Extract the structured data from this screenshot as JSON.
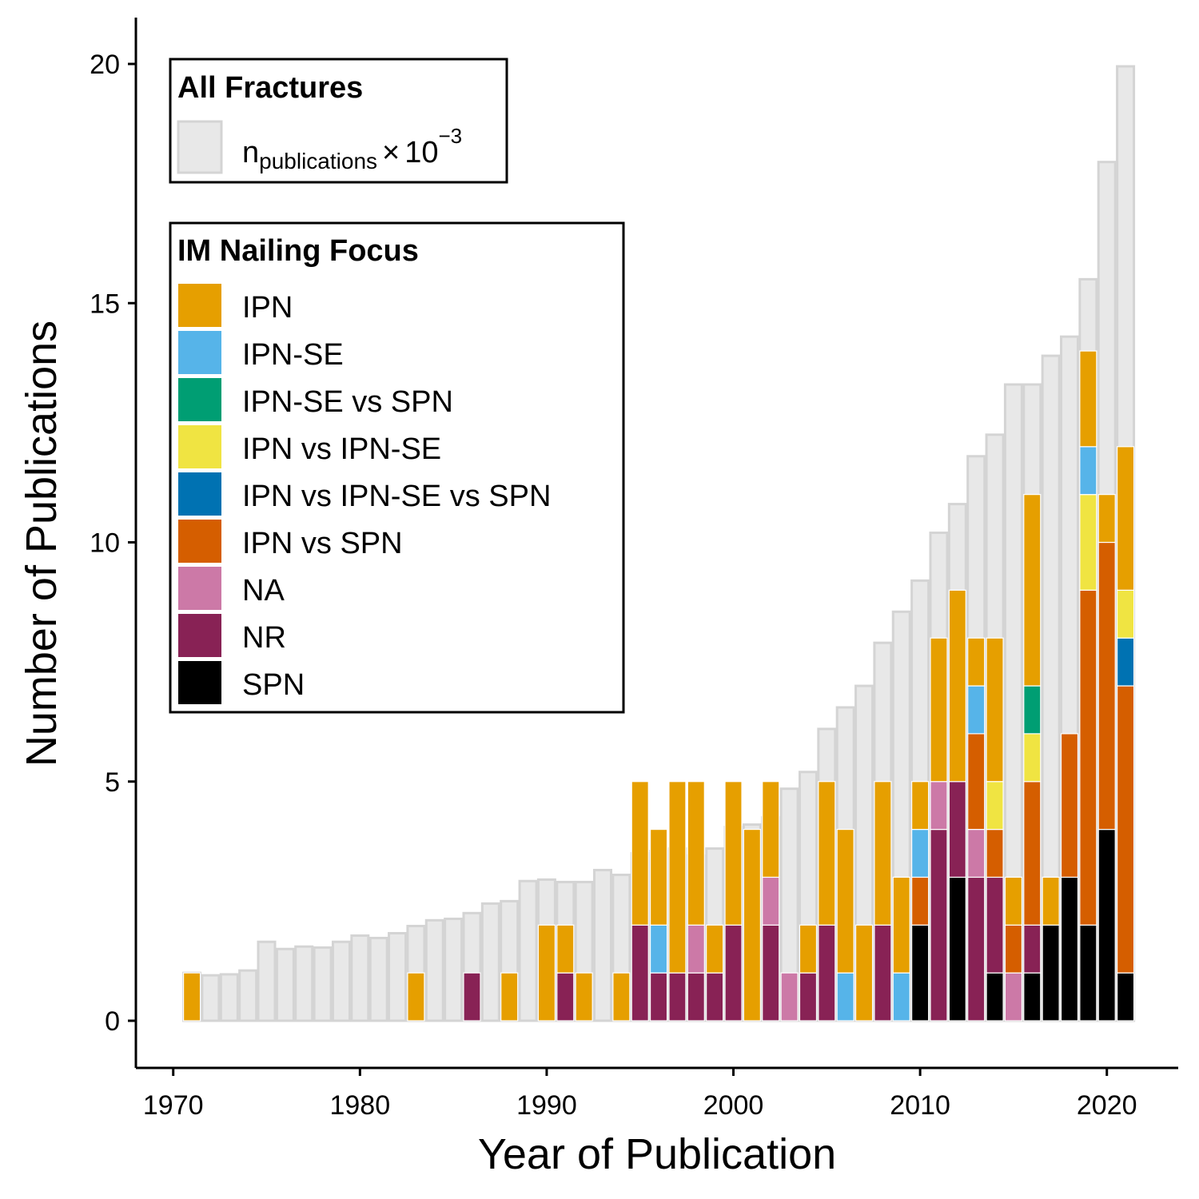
{
  "chart_data": {
    "type": "bar",
    "xlabel": "Year of Publication",
    "ylabel": "Number of Publications",
    "xlim": [
      1968,
      2024
    ],
    "ylim": [
      -1,
      21
    ],
    "x_ticks": [
      1970,
      1980,
      1990,
      2000,
      2010,
      2020
    ],
    "y_ticks": [
      0,
      5,
      10,
      15,
      20
    ],
    "grid": false,
    "legends": [
      {
        "title": "All Fractures",
        "placement": "top-left",
        "entries": [
          {
            "series": "all_fractures",
            "label_main": "n",
            "label_sub": "publications",
            "label_times": "×",
            "label_base": "10",
            "label_exp": "−3"
          }
        ]
      },
      {
        "title": "IM Nailing Focus",
        "placement": "left",
        "entries": [
          "IPN",
          "IPN-SE",
          "IPN-SE vs SPN",
          "IPN vs IPN-SE",
          "IPN vs IPN-SE vs SPN",
          "IPN vs SPN",
          "NA",
          "NR",
          "SPN"
        ]
      }
    ],
    "background_series": {
      "name": "All Fractures",
      "scale_note": "n_publications × 10^-3",
      "color": "#e8e8e8",
      "border_color": "#d4d4d4",
      "x": [
        1971,
        1972,
        1973,
        1974,
        1975,
        1976,
        1977,
        1978,
        1979,
        1980,
        1981,
        1982,
        1983,
        1984,
        1985,
        1986,
        1987,
        1988,
        1989,
        1990,
        1991,
        1992,
        1993,
        1994,
        1995,
        1996,
        1997,
        1998,
        1999,
        2000,
        2001,
        2002,
        2003,
        2004,
        2005,
        2006,
        2007,
        2008,
        2009,
        2010,
        2011,
        2012,
        2013,
        2014,
        2015,
        2016,
        2017,
        2018,
        2019,
        2020,
        2021
      ],
      "values": [
        1.0,
        0.95,
        0.97,
        1.05,
        1.65,
        1.5,
        1.55,
        1.53,
        1.65,
        1.78,
        1.73,
        1.83,
        1.98,
        2.1,
        2.13,
        2.25,
        2.45,
        2.5,
        2.92,
        2.95,
        2.9,
        2.9,
        3.15,
        3.05,
        3.5,
        3.55,
        3.6,
        3.45,
        3.6,
        4.05,
        4.1,
        4.25,
        4.85,
        5.2,
        6.1,
        6.55,
        7.0,
        7.9,
        8.55,
        9.2,
        10.2,
        10.8,
        11.8,
        12.25,
        13.3,
        13.3,
        13.9,
        14.3,
        15.5,
        17.95,
        19.95
      ]
    },
    "stack_order": [
      "SPN",
      "NR",
      "NA",
      "IPN vs SPN",
      "IPN vs IPN-SE vs SPN",
      "IPN vs IPN-SE",
      "IPN-SE vs SPN",
      "IPN-SE",
      "IPN"
    ],
    "series": [
      {
        "name": "IPN",
        "color": "#E69F00",
        "points": [
          [
            1971,
            1
          ],
          [
            1983,
            1
          ],
          [
            1988,
            1
          ],
          [
            1990,
            2
          ],
          [
            1991,
            1
          ],
          [
            1992,
            1
          ],
          [
            1994,
            1
          ],
          [
            1995,
            3
          ],
          [
            1996,
            2
          ],
          [
            1997,
            4
          ],
          [
            1998,
            3
          ],
          [
            1999,
            1
          ],
          [
            2000,
            3
          ],
          [
            2001,
            4
          ],
          [
            2002,
            2
          ],
          [
            2004,
            1
          ],
          [
            2005,
            3
          ],
          [
            2006,
            3
          ],
          [
            2007,
            2
          ],
          [
            2008,
            3
          ],
          [
            2009,
            2
          ],
          [
            2010,
            1
          ],
          [
            2011,
            3
          ],
          [
            2012,
            4
          ],
          [
            2013,
            1
          ],
          [
            2014,
            3
          ],
          [
            2015,
            1
          ],
          [
            2016,
            4
          ],
          [
            2017,
            1
          ],
          [
            2019,
            2
          ],
          [
            2020,
            1
          ],
          [
            2021,
            3
          ]
        ]
      },
      {
        "name": "IPN-SE",
        "color": "#56B4E9",
        "points": [
          [
            1996,
            1
          ],
          [
            2006,
            1
          ],
          [
            2009,
            1
          ],
          [
            2010,
            1
          ],
          [
            2013,
            1
          ],
          [
            2019,
            1
          ]
        ]
      },
      {
        "name": "IPN-SE vs SPN",
        "color": "#009E73",
        "points": [
          [
            2016,
            1
          ]
        ]
      },
      {
        "name": "IPN vs IPN-SE",
        "color": "#F0E442",
        "points": [
          [
            2014,
            1
          ],
          [
            2016,
            1
          ],
          [
            2019,
            2
          ],
          [
            2021,
            1
          ]
        ]
      },
      {
        "name": "IPN vs IPN-SE vs SPN",
        "color": "#0072B2",
        "points": [
          [
            2021,
            1
          ]
        ]
      },
      {
        "name": "IPN vs SPN",
        "color": "#D55E00",
        "points": [
          [
            2010,
            1
          ],
          [
            2013,
            2
          ],
          [
            2014,
            1
          ],
          [
            2015,
            1
          ],
          [
            2016,
            3
          ],
          [
            2018,
            3
          ],
          [
            2019,
            7
          ],
          [
            2020,
            6
          ],
          [
            2021,
            6
          ]
        ]
      },
      {
        "name": "NA",
        "color": "#CC79A7",
        "points": [
          [
            1998,
            1
          ],
          [
            2002,
            1
          ],
          [
            2003,
            1
          ],
          [
            2011,
            1
          ],
          [
            2013,
            1
          ],
          [
            2015,
            1
          ]
        ]
      },
      {
        "name": "NR",
        "color": "#882255",
        "points": [
          [
            1986,
            1
          ],
          [
            1991,
            1
          ],
          [
            1995,
            2
          ],
          [
            1996,
            1
          ],
          [
            1997,
            1
          ],
          [
            1998,
            1
          ],
          [
            1999,
            1
          ],
          [
            2000,
            2
          ],
          [
            2002,
            2
          ],
          [
            2004,
            1
          ],
          [
            2005,
            2
          ],
          [
            2008,
            2
          ],
          [
            2011,
            4
          ],
          [
            2012,
            2
          ],
          [
            2013,
            3
          ],
          [
            2014,
            2
          ],
          [
            2016,
            1
          ]
        ]
      },
      {
        "name": "SPN",
        "color": "#000000",
        "points": [
          [
            2010,
            2
          ],
          [
            2012,
            3
          ],
          [
            2014,
            1
          ],
          [
            2016,
            1
          ],
          [
            2017,
            2
          ],
          [
            2018,
            3
          ],
          [
            2019,
            2
          ],
          [
            2020,
            4
          ],
          [
            2021,
            1
          ]
        ]
      }
    ]
  }
}
